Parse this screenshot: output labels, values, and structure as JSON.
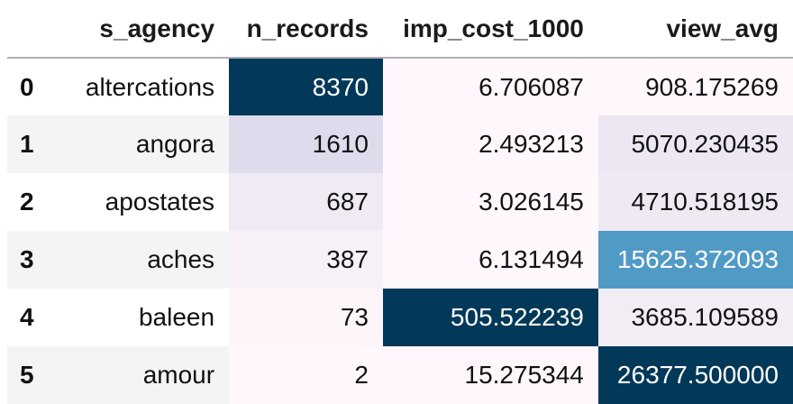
{
  "columns": [
    "",
    "s_agency",
    "n_records",
    "imp_cost_1000",
    "view_avg"
  ],
  "rows": [
    {
      "idx": "0",
      "s_agency": "altercations",
      "n_records": "8370",
      "imp_cost_1000": "6.706087",
      "view_avg": "908.175269"
    },
    {
      "idx": "1",
      "s_agency": "angora",
      "n_records": "1610",
      "imp_cost_1000": "2.493213",
      "view_avg": "5070.230435"
    },
    {
      "idx": "2",
      "s_agency": "apostates",
      "n_records": "687",
      "imp_cost_1000": "3.026145",
      "view_avg": "4710.518195"
    },
    {
      "idx": "3",
      "s_agency": "aches",
      "n_records": "387",
      "imp_cost_1000": "6.131494",
      "view_avg": "15625.372093"
    },
    {
      "idx": "4",
      "s_agency": "baleen",
      "n_records": "73",
      "imp_cost_1000": "505.522239",
      "view_avg": "3685.109589"
    },
    {
      "idx": "5",
      "s_agency": "amour",
      "n_records": "2",
      "imp_cost_1000": "15.275344",
      "view_avg": "26377.500000"
    }
  ],
  "cell_colors": {
    "n_records": [
      "#023858",
      "#dedcec",
      "#efeaf4",
      "#f7f0f7",
      "#fdf5fa",
      "#fff7fb"
    ],
    "imp_cost_1000": [
      "#fff7fb",
      "#fff7fb",
      "#fff7fb",
      "#fff7fb",
      "#023858",
      "#fef6fb"
    ],
    "view_avg": [
      "#fff7fb",
      "#ece7f2",
      "#eee9f3",
      "#509ac6",
      "#f2ecf5",
      "#023858"
    ]
  },
  "dark_text_color": "#111111",
  "light_text_color": "#ffffff"
}
